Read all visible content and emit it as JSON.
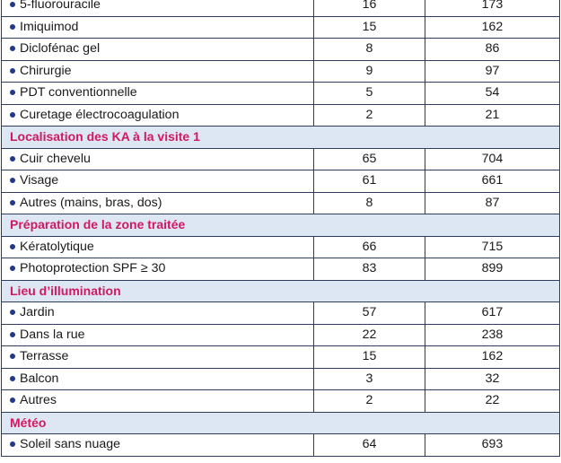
{
  "rows": [
    {
      "type": "data",
      "label": "5-fluorouracile",
      "count": "16",
      "n": "173"
    },
    {
      "type": "data",
      "label": "Imiquimod",
      "count": "15",
      "n": "162"
    },
    {
      "type": "data",
      "label": "Diclofénac gel",
      "count": "8",
      "n": "86"
    },
    {
      "type": "data",
      "label": "Chirurgie",
      "count": "9",
      "n": "97"
    },
    {
      "type": "data",
      "label": "PDT conventionnelle",
      "count": "5",
      "n": "54"
    },
    {
      "type": "data",
      "label": "Curetage électrocoagulation",
      "count": "2",
      "n": "21"
    },
    {
      "type": "section",
      "label": "Localisation des KA à la visite 1"
    },
    {
      "type": "data",
      "label": "Cuir chevelu",
      "count": "65",
      "n": "704"
    },
    {
      "type": "data",
      "label": "Visage",
      "count": "61",
      "n": "661"
    },
    {
      "type": "data",
      "label": "Autres (mains, bras, dos)",
      "count": "8",
      "n": "87"
    },
    {
      "type": "section",
      "label": "Préparation de la zone traitée"
    },
    {
      "type": "data",
      "label": "Kératolytique",
      "count": "66",
      "n": "715"
    },
    {
      "type": "data",
      "label": "Photoprotection SPF ≥ 30",
      "count": "83",
      "n": "899"
    },
    {
      "type": "section",
      "label": "Lieu d’illumination"
    },
    {
      "type": "data",
      "label": "Jardin",
      "count": "57",
      "n": "617"
    },
    {
      "type": "data",
      "label": "Dans la rue",
      "count": "22",
      "n": "238"
    },
    {
      "type": "data",
      "label": "Terrasse",
      "count": "15",
      "n": "162"
    },
    {
      "type": "data",
      "label": "Balcon",
      "count": "3",
      "n": "32"
    },
    {
      "type": "data",
      "label": "Autres",
      "count": "2",
      "n": "22"
    },
    {
      "type": "section",
      "label": "Météo"
    },
    {
      "type": "data",
      "label": "Soleil sans nuage",
      "count": "64",
      "n": "693"
    }
  ],
  "colors": {
    "section_text": "#cf1962",
    "section_bg": "#dde6f3",
    "bullet": "#1f3a8c",
    "border": "#2e3d5b"
  },
  "icons": {
    "bullet": "bullet-icon"
  }
}
